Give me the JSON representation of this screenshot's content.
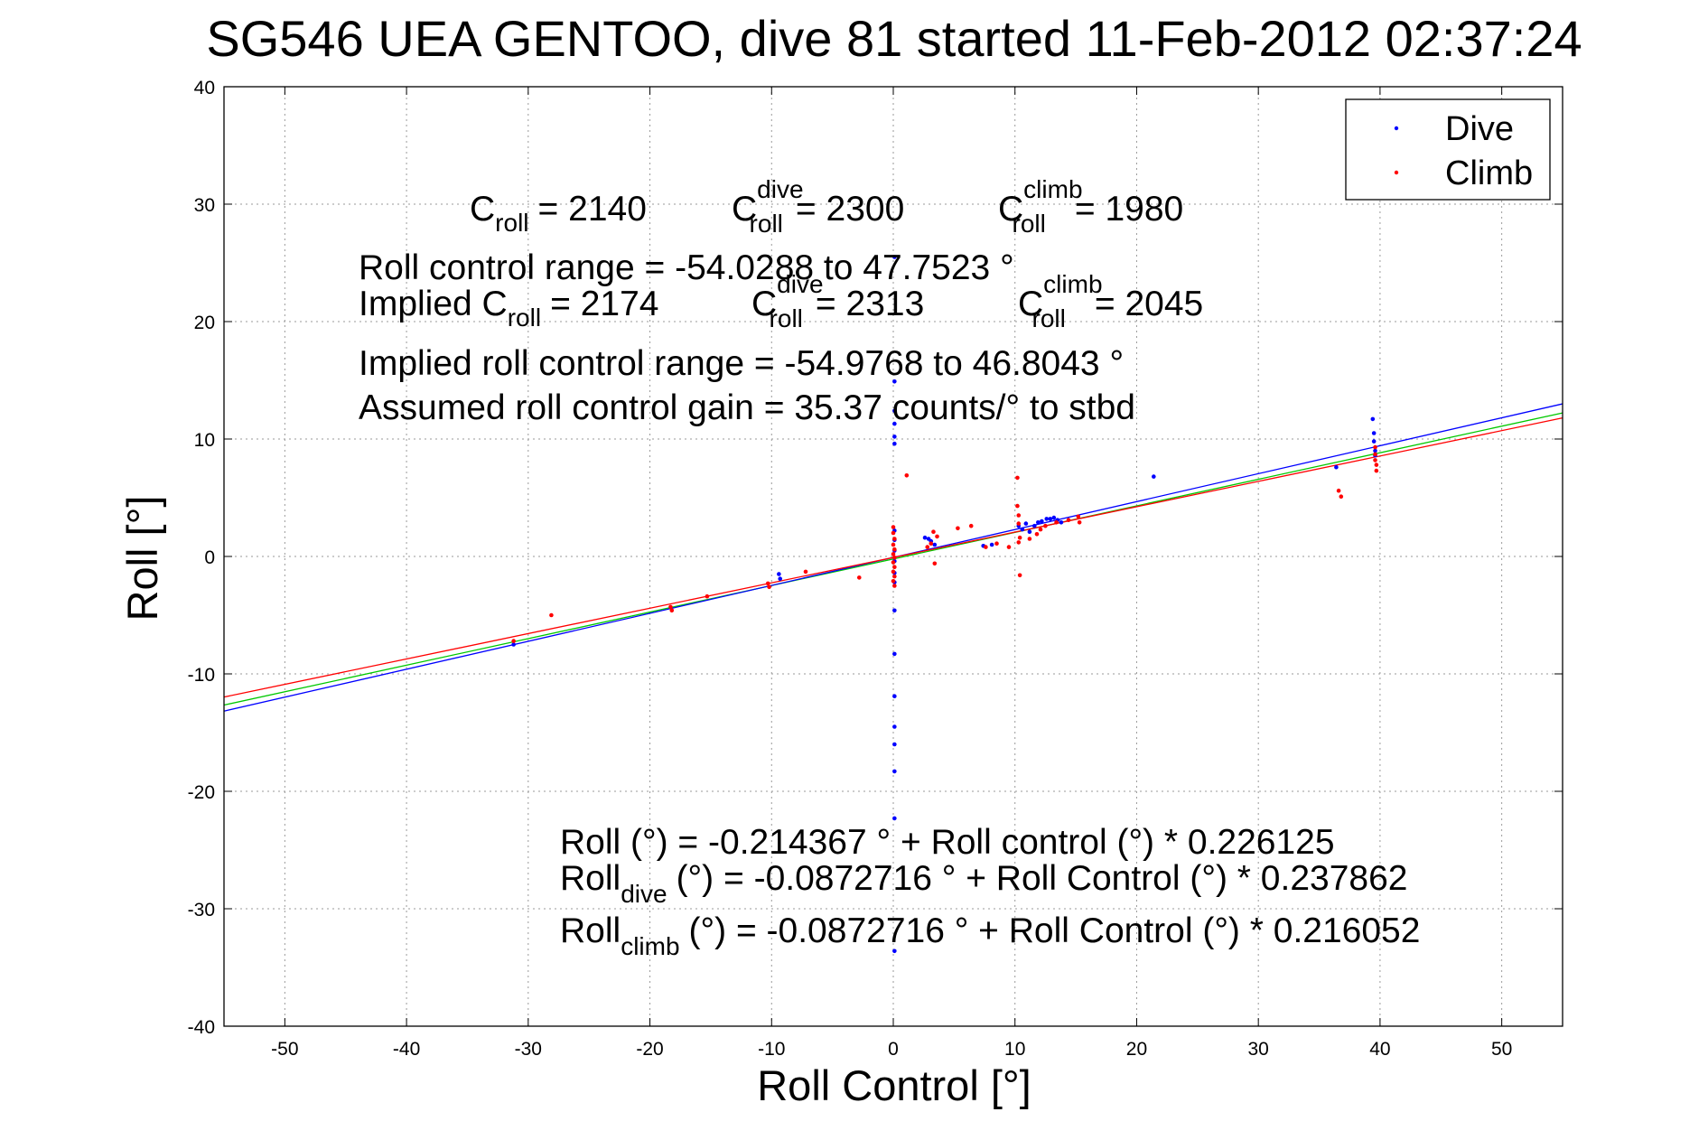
{
  "chart_data": {
    "type": "scatter",
    "title": "SG546 UEA GENTOO, dive 81 started 11-Feb-2012 02:37:24",
    "xlabel": "Roll Control [°]",
    "ylabel": "Roll [°]",
    "xlim": [
      -55,
      55
    ],
    "ylim": [
      -40,
      40
    ],
    "xticks": [
      -50,
      -40,
      -30,
      -20,
      -10,
      0,
      10,
      20,
      30,
      40,
      50
    ],
    "yticks": [
      -40,
      -30,
      -20,
      -10,
      0,
      10,
      20,
      30,
      40
    ],
    "grid": true,
    "legend_position": "top-right",
    "legend": [
      {
        "label": "Dive",
        "color": "#0000ff"
      },
      {
        "label": "Climb",
        "color": "#ff0000"
      }
    ],
    "series": [
      {
        "name": "Dive",
        "color": "#0000ff",
        "points": [
          [
            -31.2,
            -7.5
          ],
          [
            -9.4,
            -1.5
          ],
          [
            -9.3,
            -1.9
          ],
          [
            0.1,
            25.5
          ],
          [
            0.1,
            14.9
          ],
          [
            0.1,
            12.4
          ],
          [
            0.1,
            11.3
          ],
          [
            0.1,
            10.2
          ],
          [
            0.1,
            9.6
          ],
          [
            0.1,
            2.2
          ],
          [
            0.1,
            1.4
          ],
          [
            0.1,
            0.5
          ],
          [
            0.1,
            -0.4
          ],
          [
            0.1,
            -1.4
          ],
          [
            0.1,
            -2.2
          ],
          [
            0.1,
            -4.6
          ],
          [
            0.1,
            -8.3
          ],
          [
            0.1,
            -11.9
          ],
          [
            0.1,
            -14.5
          ],
          [
            0.1,
            -16.0
          ],
          [
            0.1,
            -18.3
          ],
          [
            0.1,
            -22.3
          ],
          [
            0.1,
            -33.6
          ],
          [
            2.6,
            1.6
          ],
          [
            2.9,
            1.5
          ],
          [
            3.1,
            1.3
          ],
          [
            3.4,
            1.0
          ],
          [
            7.4,
            0.9
          ],
          [
            8.1,
            1.0
          ],
          [
            10.3,
            2.6
          ],
          [
            10.6,
            2.3
          ],
          [
            10.9,
            2.8
          ],
          [
            11.2,
            2.1
          ],
          [
            11.6,
            2.6
          ],
          [
            11.9,
            2.9
          ],
          [
            12.2,
            3.0
          ],
          [
            12.6,
            3.2
          ],
          [
            12.9,
            3.2
          ],
          [
            13.2,
            3.3
          ],
          [
            13.5,
            3.1
          ],
          [
            13.8,
            2.9
          ],
          [
            21.4,
            6.8
          ],
          [
            36.4,
            7.6
          ],
          [
            39.4,
            11.7
          ],
          [
            39.5,
            10.5
          ],
          [
            39.5,
            9.8
          ],
          [
            39.6,
            9.0
          ],
          [
            39.6,
            8.6
          ]
        ]
      },
      {
        "name": "Climb",
        "color": "#ff0000",
        "points": [
          [
            -28.1,
            -5.0
          ],
          [
            -31.2,
            -7.2
          ],
          [
            -18.3,
            -4.3
          ],
          [
            -18.2,
            -4.6
          ],
          [
            -15.3,
            -3.4
          ],
          [
            -10.3,
            -2.3
          ],
          [
            -10.2,
            -2.6
          ],
          [
            -7.2,
            -1.3
          ],
          [
            -2.8,
            -1.8
          ],
          [
            0.0,
            2.5
          ],
          [
            0.0,
            2.0
          ],
          [
            0.1,
            1.5
          ],
          [
            0.0,
            1.0
          ],
          [
            0.1,
            0.6
          ],
          [
            0.0,
            0.2
          ],
          [
            0.1,
            -0.1
          ],
          [
            0.0,
            -0.5
          ],
          [
            0.1,
            -0.9
          ],
          [
            0.0,
            -1.3
          ],
          [
            0.1,
            -1.7
          ],
          [
            0.0,
            -2.1
          ],
          [
            0.1,
            -2.5
          ],
          [
            1.1,
            6.9
          ],
          [
            2.8,
            0.8
          ],
          [
            3.1,
            1.1
          ],
          [
            3.3,
            2.1
          ],
          [
            3.4,
            -0.6
          ],
          [
            3.6,
            1.7
          ],
          [
            5.3,
            2.4
          ],
          [
            6.4,
            2.6
          ],
          [
            7.6,
            0.8
          ],
          [
            8.5,
            1.1
          ],
          [
            9.5,
            0.8
          ],
          [
            10.2,
            6.7
          ],
          [
            10.2,
            4.3
          ],
          [
            10.3,
            3.5
          ],
          [
            10.3,
            2.8
          ],
          [
            10.4,
            1.6
          ],
          [
            10.3,
            1.2
          ],
          [
            10.4,
            -1.6
          ],
          [
            11.2,
            1.5
          ],
          [
            11.8,
            1.9
          ],
          [
            12.1,
            2.3
          ],
          [
            12.5,
            2.6
          ],
          [
            13.4,
            2.9
          ],
          [
            14.4,
            3.1
          ],
          [
            15.2,
            3.4
          ],
          [
            15.3,
            2.9
          ],
          [
            36.6,
            5.6
          ],
          [
            36.8,
            5.1
          ],
          [
            39.6,
            9.3
          ],
          [
            39.6,
            8.7
          ],
          [
            39.6,
            8.2
          ],
          [
            39.7,
            7.8
          ],
          [
            39.7,
            7.3
          ]
        ]
      }
    ],
    "fit_lines": [
      {
        "color": "#00c800",
        "intercept": -0.214367,
        "slope": 0.226125
      },
      {
        "color": "#0000ff",
        "intercept": -0.0872716,
        "slope": 0.237862
      },
      {
        "color": "#ff0000",
        "intercept": -0.0872716,
        "slope": 0.216052
      }
    ]
  },
  "annotations": {
    "c_roll": "= 2140",
    "c_roll_dive": "= 2300",
    "c_roll_climb": "= 1980",
    "roll_control_range": "Roll control range = -54.0288 to 47.7523 °",
    "implied_c_roll": "= 2174",
    "implied_c_roll_dive": "= 2313",
    "implied_c_roll_climb": "= 2045",
    "implied_range": "Implied roll control range = -54.9768 to 46.8043 °",
    "gain": "Assumed roll control gain = 35.37 counts/° to stbd",
    "eq_roll": "Roll (°) = -0.214367 ° + Roll control (°) * 0.226125",
    "eq_dive_rest": "(°) = -0.0872716 ° + Roll Control (°) * 0.237862",
    "eq_climb_rest": "(°) = -0.0872716 ° + Roll Control (°) * 0.216052",
    "sym_c": "C",
    "sym_roll_word": "Roll",
    "implied_word": "Implied C",
    "sub_roll": "roll",
    "sup_dive": "dive",
    "sup_climb": "climb",
    "sub_dive": "dive",
    "sub_climb": "climb"
  }
}
